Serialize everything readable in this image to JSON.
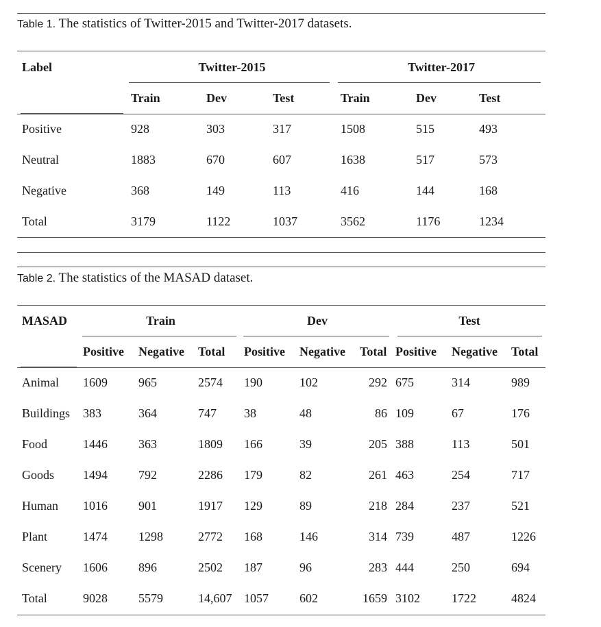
{
  "table1": {
    "caption_label": "Table 1.",
    "caption_text": "The statistics of Twitter-2015 and Twitter-2017 datasets.",
    "corner": "Label",
    "groups": [
      "Twitter-2015",
      "Twitter-2017"
    ],
    "subheaders": [
      "Train",
      "Dev",
      "Test",
      "Train",
      "Dev",
      "Test"
    ],
    "rows": [
      {
        "label": "Positive",
        "values": [
          "928",
          "303",
          "317",
          "1508",
          "515",
          "493"
        ]
      },
      {
        "label": "Neutral",
        "values": [
          "1883",
          "670",
          "607",
          "1638",
          "517",
          "573"
        ]
      },
      {
        "label": "Negative",
        "values": [
          "368",
          "149",
          "113",
          "416",
          "144",
          "168"
        ]
      },
      {
        "label": "Total",
        "values": [
          "3179",
          "1122",
          "1037",
          "3562",
          "1176",
          "1234"
        ]
      }
    ]
  },
  "table2": {
    "caption_label": "Table 2.",
    "caption_text": "The statistics of the MASAD dataset.",
    "corner": "MASAD",
    "groups": [
      "Train",
      "Dev",
      "Test"
    ],
    "subheaders": [
      "Positive",
      "Negative",
      "Total",
      "Positive",
      "Negative",
      "Total",
      "Positive",
      "Negative",
      "Total"
    ],
    "rows": [
      {
        "label": "Animal",
        "values": [
          "1609",
          "965",
          "2574",
          "190",
          "102",
          "292",
          "675",
          "314",
          "989"
        ]
      },
      {
        "label": "Buildings",
        "values": [
          "383",
          "364",
          "747",
          "38",
          "48",
          "86",
          "109",
          "67",
          "176"
        ]
      },
      {
        "label": "Food",
        "values": [
          "1446",
          "363",
          "1809",
          "166",
          "39",
          "205",
          "388",
          "113",
          "501"
        ]
      },
      {
        "label": "Goods",
        "values": [
          "1494",
          "792",
          "2286",
          "179",
          "82",
          "261",
          "463",
          "254",
          "717"
        ]
      },
      {
        "label": "Human",
        "values": [
          "1016",
          "901",
          "1917",
          "129",
          "89",
          "218",
          "284",
          "237",
          "521"
        ]
      },
      {
        "label": "Plant",
        "values": [
          "1474",
          "1298",
          "2772",
          "168",
          "146",
          "314",
          "739",
          "487",
          "1226"
        ]
      },
      {
        "label": "Scenery",
        "values": [
          "1606",
          "896",
          "2502",
          "187",
          "96",
          "283",
          "444",
          "250",
          "694"
        ]
      },
      {
        "label": "Total",
        "values": [
          "9028",
          "5579",
          "14,607",
          "1057",
          "602",
          "1659",
          "3102",
          "1722",
          "4824"
        ]
      }
    ]
  }
}
